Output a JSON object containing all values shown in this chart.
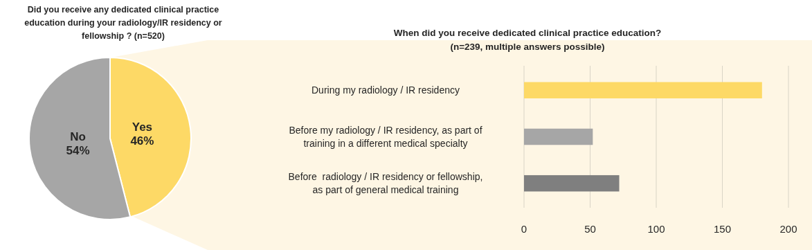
{
  "chart_data": [
    {
      "type": "pie",
      "title": "Did you receive any dedicated clinical practice education during your radiology/IR residency or fellowship ? (n=520)",
      "categories": [
        "Yes",
        "No"
      ],
      "values": [
        46,
        54
      ],
      "colors": [
        "#fdd966",
        "#a6a6a6"
      ],
      "value_labels": [
        "46%",
        "54%"
      ],
      "legend": false
    },
    {
      "type": "bar",
      "orientation": "horizontal",
      "title": "When did you receive dedicated clinical practice education? (n=239, multiple answers possible)",
      "categories": [
        "During my radiology / IR residency",
        "Before my radiology / IR residency, as part of training in a different medical specialty",
        "Before  radiology / IR residency or fellowship, as part of general medical training"
      ],
      "values": [
        180,
        52,
        72
      ],
      "colors": [
        "#fdd966",
        "#a6a6a6",
        "#7f7f7f"
      ],
      "xlim": [
        0,
        200
      ],
      "xticks": [
        0,
        50,
        100,
        150,
        200
      ],
      "grid": "x",
      "legend": false
    }
  ]
}
